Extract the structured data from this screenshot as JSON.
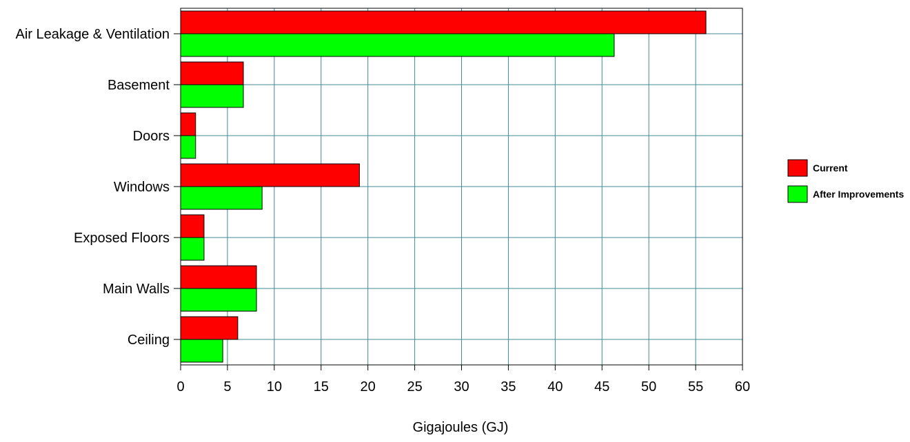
{
  "chart_data": {
    "type": "bar",
    "orientation": "horizontal",
    "title": "",
    "xlabel": "Gigajoules (GJ)",
    "ylabel": "",
    "xlim": [
      0,
      60
    ],
    "x_ticks": [
      0,
      5,
      10,
      15,
      20,
      25,
      30,
      35,
      40,
      45,
      50,
      55,
      60
    ],
    "grid": true,
    "legend_position": "right",
    "categories": [
      "Air Leakage & Ventilation",
      "Basement",
      "Doors",
      "Windows",
      "Exposed Floors",
      "Main Walls",
      "Ceiling"
    ],
    "series": [
      {
        "name": "Current",
        "color": "#ff0000",
        "values": [
          56.1,
          6.7,
          1.6,
          19.1,
          2.5,
          8.1,
          6.1
        ]
      },
      {
        "name": "After Improvements",
        "color": "#00ff00",
        "values": [
          46.3,
          6.7,
          1.6,
          8.7,
          2.5,
          8.1,
          4.5
        ]
      }
    ],
    "grid_color": "#3f8a96"
  }
}
